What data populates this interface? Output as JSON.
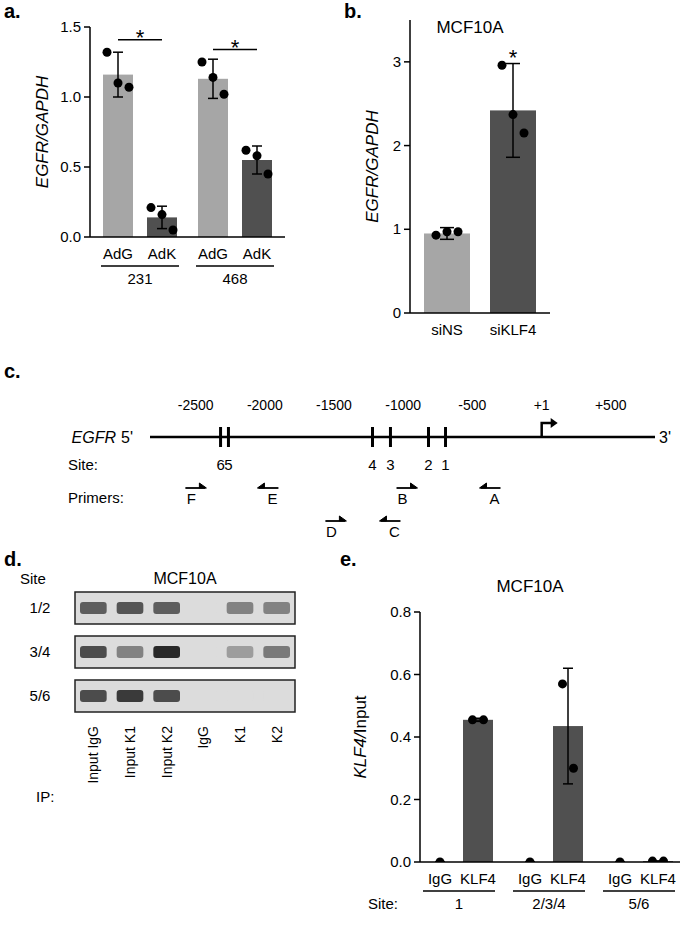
{
  "panel_labels": [
    "a.",
    "b.",
    "c.",
    "d.",
    "e."
  ],
  "chart_data": [
    {
      "type": "bar",
      "y_label": "EGFR/GAPDH",
      "categories": [
        "AdG",
        "AdK",
        "AdG",
        "AdK"
      ],
      "values": [
        1.16,
        0.14,
        1.13,
        0.55
      ],
      "errors": [
        0.16,
        0.08,
        0.14,
        0.1
      ],
      "points": [
        [
          1.32,
          1.1,
          1.07
        ],
        [
          0.21,
          0.16,
          0.05
        ],
        [
          1.25,
          1.14,
          1.02
        ],
        [
          0.62,
          0.58,
          0.45
        ]
      ],
      "colors": [
        "#a6a6a6",
        "#505050",
        "#a6a6a6",
        "#505050"
      ],
      "groups": [
        {
          "label": "231",
          "span": [
            0,
            1
          ]
        },
        {
          "label": "468",
          "span": [
            2,
            3
          ]
        }
      ],
      "significance": [
        {
          "label": "*",
          "span": [
            0,
            1
          ]
        },
        {
          "label": "*",
          "span": [
            2,
            3
          ]
        }
      ],
      "ylim": [
        0,
        1.5
      ],
      "yticks": [
        {
          "value": 0,
          "label": "0.0"
        },
        0.5,
        {
          "value": 1,
          "label": "1.0"
        },
        1.5
      ]
    },
    {
      "type": "bar",
      "title": "MCF10A",
      "y_label": "EGFR/GAPDH",
      "categories": [
        "siNS",
        "siKLF4"
      ],
      "values": [
        0.95,
        2.42
      ],
      "errors": [
        0.07,
        0.56
      ],
      "points": [
        [
          0.93,
          0.97,
          0.97
        ],
        [
          2.96,
          2.37,
          2.15
        ]
      ],
      "colors": [
        "#a6a6a6",
        "#505050"
      ],
      "significance": [
        {
          "label": "*",
          "span": [
            1,
            1
          ]
        }
      ],
      "ylim": [
        0,
        3.5
      ],
      "yticks": [
        0,
        1,
        2,
        3
      ]
    },
    {
      "type": "bar",
      "title": "MCF10A",
      "y_label": "KLF4/Input",
      "categories": [
        "IgG",
        "KLF4",
        "IgG",
        "KLF4",
        "IgG",
        "KLF4"
      ],
      "values": [
        0,
        0.455,
        0,
        0.435,
        0,
        0.003
      ],
      "errors": [
        0,
        0.005,
        0,
        0.185,
        0,
        0
      ],
      "points": [
        [
          0
        ],
        [
          0.455,
          0.455
        ],
        [
          0
        ],
        [
          0.57,
          0.3
        ],
        [
          0
        ],
        [
          0.003,
          0.003
        ]
      ],
      "colors": [
        "#505050",
        "#505050",
        "#505050",
        "#505050",
        "#505050",
        "#505050"
      ],
      "group_axis_label": "Site:",
      "groups": [
        {
          "label": "1",
          "span": [
            0,
            1
          ]
        },
        {
          "label": "2/3/4",
          "span": [
            2,
            3
          ]
        },
        {
          "label": "5/6",
          "span": [
            4,
            5
          ]
        }
      ],
      "ylim": [
        0,
        0.8
      ],
      "yticks": [
        {
          "value": 0,
          "label": "0.0"
        },
        0.2,
        0.4,
        0.6,
        0.8
      ]
    }
  ],
  "diagram": {
    "gene": "EGFR",
    "five_prime": "5'",
    "three_prime": "3'",
    "xlim": [
      -2830,
      820
    ],
    "xticks": [
      -2500,
      -2000,
      -1500,
      -1000,
      -500,
      {
        "value": 1,
        "label": "+1"
      },
      {
        "value": 500,
        "label": "+500"
      }
    ],
    "tss": 1,
    "site_label": "Site:",
    "sites": [
      {
        "label": "6",
        "position": -2320
      },
      {
        "label": "5",
        "position": -2263
      },
      {
        "label": "4",
        "position": -1222
      },
      {
        "label": "3",
        "position": -1092
      },
      {
        "label": "2",
        "position": -817
      },
      {
        "label": "1",
        "position": -694
      }
    ],
    "primer_label": "Primers:",
    "primers": [
      [
        {
          "label": "F",
          "position": -2502,
          "direction": "right"
        },
        {
          "label": "E",
          "position": -1974,
          "direction": "left"
        },
        {
          "label": "B",
          "position": -976,
          "direction": "right"
        },
        {
          "label": "A",
          "position": -369,
          "direction": "left"
        }
      ],
      [
        {
          "label": "D",
          "position": -1490,
          "direction": "right"
        },
        {
          "label": "C",
          "position": -1092,
          "direction": "left"
        }
      ]
    ]
  },
  "gel": {
    "title": "MCF10A",
    "row_header": "Site",
    "lane_header": "IP:",
    "lanes": [
      "Input IgG",
      "Input K1",
      "Input K2",
      "IgG",
      "K1",
      "K2"
    ],
    "rows": [
      {
        "label": "1/2",
        "bands": [
          0.7,
          0.75,
          0.7,
          0,
          0.5,
          0.5
        ]
      },
      {
        "label": "3/4",
        "bands": [
          0.8,
          0.5,
          1.0,
          0,
          0.35,
          0.55
        ]
      },
      {
        "label": "5/6",
        "bands": [
          0.8,
          0.9,
          0.8,
          0,
          0,
          0
        ]
      }
    ]
  }
}
